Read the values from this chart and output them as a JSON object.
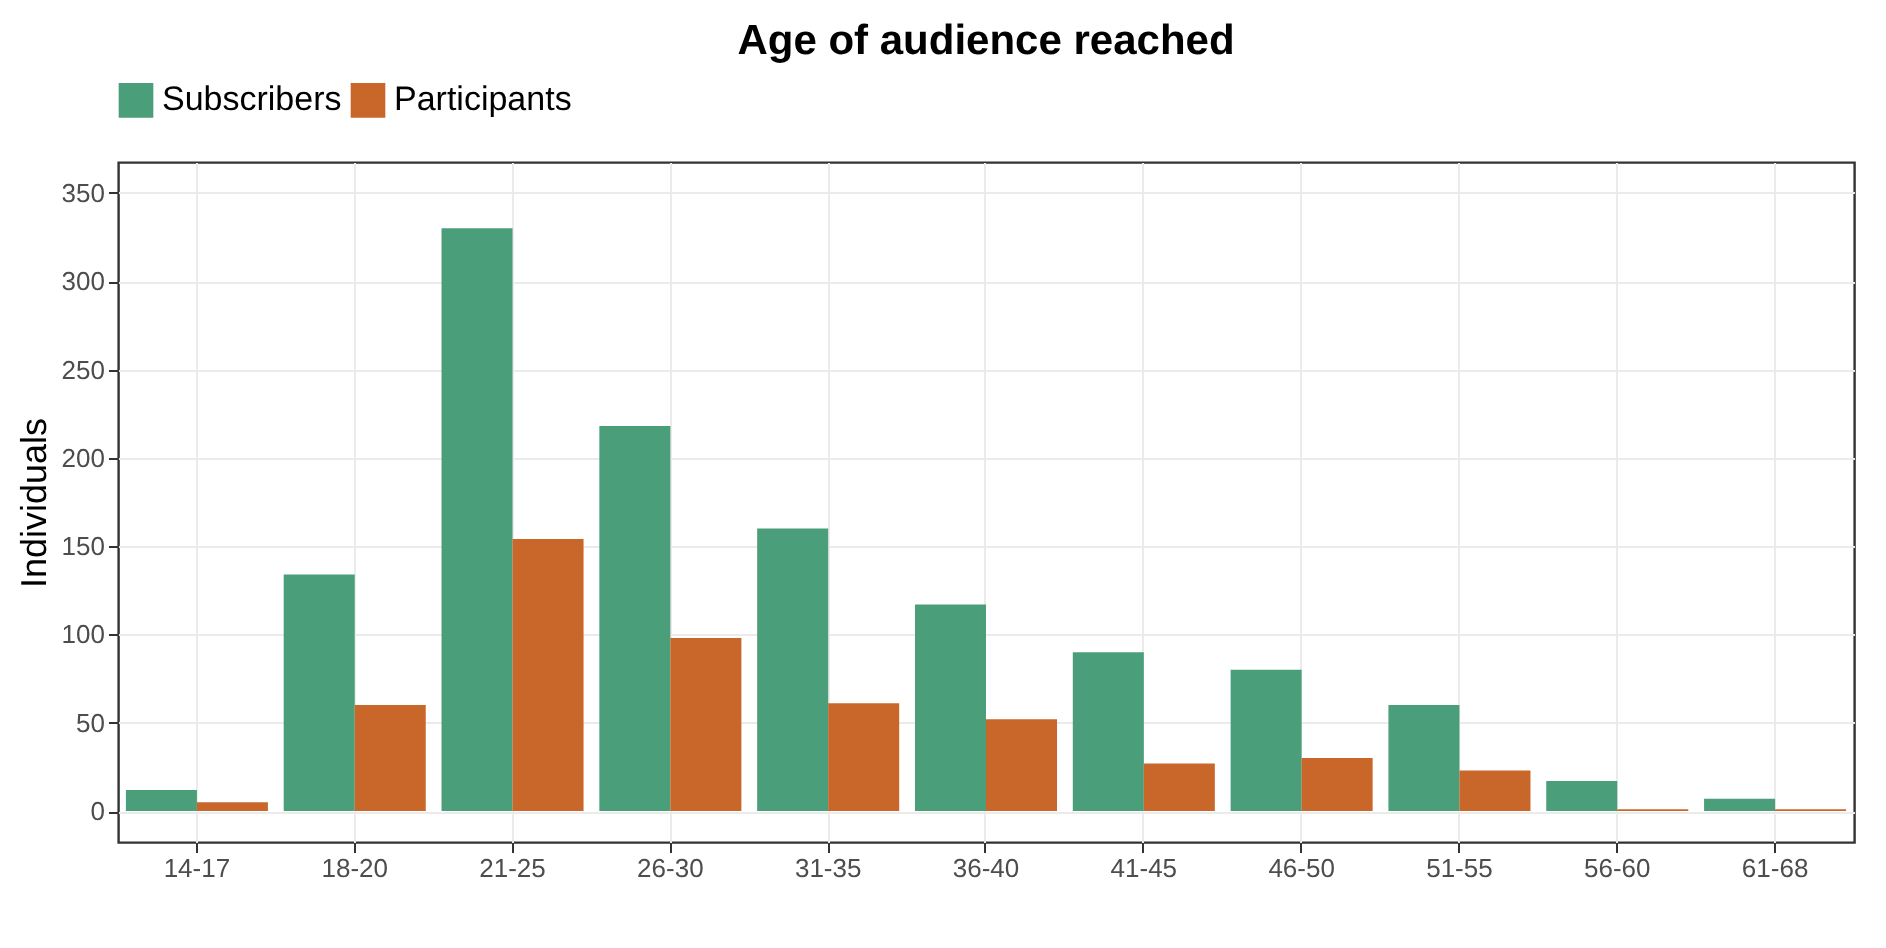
{
  "chart_data": {
    "type": "bar",
    "title": "Age of audience reached",
    "ylabel": "Individuals",
    "categories": [
      "14-17",
      "18-20",
      "21-25",
      "26-30",
      "31-35",
      "36-40",
      "41-45",
      "46-50",
      "51-55",
      "56-60",
      "61-68"
    ],
    "series": [
      {
        "name": "Subscribers",
        "color": "#4a9e7a",
        "values": [
          12,
          134,
          330,
          218,
          160,
          117,
          90,
          80,
          60,
          17,
          7
        ]
      },
      {
        "name": "Participants",
        "color": "#c9672a",
        "values": [
          5,
          60,
          154,
          98,
          61,
          52,
          27,
          30,
          23,
          1,
          1
        ]
      }
    ],
    "ylim": [
      -17.5,
      367.5
    ],
    "yticks": [
      0,
      50,
      100,
      150,
      200,
      250,
      300,
      350
    ],
    "grid": true,
    "legend": "top"
  }
}
